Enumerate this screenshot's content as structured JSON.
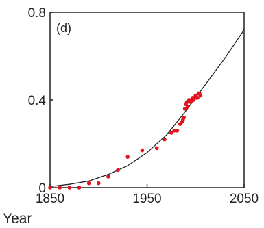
{
  "chart_data": {
    "type": "scatter",
    "panel_label": "(d)",
    "xlabel": "Year",
    "ylabel": "",
    "xlim": [
      1850,
      2050
    ],
    "ylim": [
      0,
      0.8
    ],
    "xticks": [
      1850,
      1950,
      2050
    ],
    "yticks": [
      0,
      0.4,
      0.8
    ],
    "xtick_labels": [
      "1850",
      "1950",
      "2050"
    ],
    "ytick_labels": [
      "0",
      "0.4",
      "0.8"
    ],
    "grid": false,
    "series": [
      {
        "kind": "points",
        "color": "#e0141e",
        "x": [
          1850,
          1860,
          1870,
          1880,
          1890,
          1900,
          1910,
          1920,
          1930,
          1945,
          1960,
          1968,
          1975,
          1978,
          1981,
          1984,
          1986,
          1987,
          1988,
          1989,
          1990,
          1991,
          1992,
          1993,
          1994,
          1995,
          1996,
          1997,
          1998,
          1999,
          2000,
          2001,
          2002,
          2003,
          2004,
          2005
        ],
        "y": [
          0.0,
          0.0,
          0.0,
          0.0,
          0.02,
          0.02,
          0.05,
          0.08,
          0.14,
          0.17,
          0.18,
          0.22,
          0.25,
          0.26,
          0.26,
          0.29,
          0.3,
          0.31,
          0.32,
          0.36,
          0.38,
          0.39,
          0.37,
          0.4,
          0.4,
          0.39,
          0.4,
          0.41,
          0.4,
          0.41,
          0.42,
          0.41,
          0.41,
          0.43,
          0.43,
          0.42
        ]
      },
      {
        "kind": "line",
        "color": "#222222",
        "x": [
          1850,
          1870,
          1890,
          1910,
          1930,
          1950,
          1970,
          1990,
          2010,
          2030,
          2050
        ],
        "y": [
          0.005,
          0.015,
          0.03,
          0.06,
          0.1,
          0.16,
          0.24,
          0.35,
          0.47,
          0.59,
          0.72
        ]
      }
    ]
  }
}
